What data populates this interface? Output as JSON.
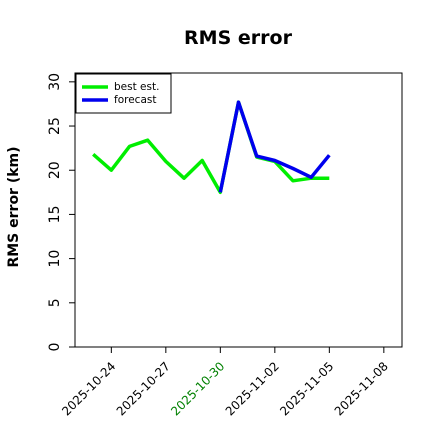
{
  "chart_data": {
    "type": "line",
    "title": "RMS error",
    "xlabel": "",
    "ylabel": "RMS error (km)",
    "ylim": [
      0,
      31
    ],
    "yticks": [
      0,
      5,
      10,
      15,
      20,
      25,
      30
    ],
    "xlim": [
      "2025-10-22",
      "2025-11-09"
    ],
    "xticks": [
      "2025-10-24",
      "2025-10-27",
      "2025-10-30",
      "2025-11-02",
      "2025-11-05",
      "2025-11-08"
    ],
    "highlight_tick": "2025-10-30",
    "highlight_color": "#008000",
    "legend": "top-left",
    "series": [
      {
        "name": "best est.",
        "color": "#00ee00",
        "points": [
          [
            "2025-10-23",
            21.8
          ],
          [
            "2025-10-24",
            20.0
          ],
          [
            "2025-10-25",
            22.7
          ],
          [
            "2025-10-26",
            23.4
          ],
          [
            "2025-10-27",
            21.0
          ],
          [
            "2025-10-28",
            19.1
          ],
          [
            "2025-10-29",
            21.1
          ],
          [
            "2025-10-30",
            17.5
          ],
          [
            "2025-10-31",
            27.7
          ],
          [
            "2025-11-01",
            21.5
          ],
          [
            "2025-11-02",
            21.0
          ],
          [
            "2025-11-03",
            18.8
          ],
          [
            "2025-11-04",
            19.1
          ],
          [
            "2025-11-05",
            19.1
          ]
        ]
      },
      {
        "name": "forecast",
        "color": "#0000ee",
        "points": [
          [
            "2025-10-30",
            17.5
          ],
          [
            "2025-10-31",
            27.7
          ],
          [
            "2025-11-01",
            21.6
          ],
          [
            "2025-11-02",
            21.1
          ],
          [
            "2025-11-03",
            20.2
          ],
          [
            "2025-11-04",
            19.2
          ],
          [
            "2025-11-05",
            21.7
          ]
        ]
      }
    ]
  }
}
